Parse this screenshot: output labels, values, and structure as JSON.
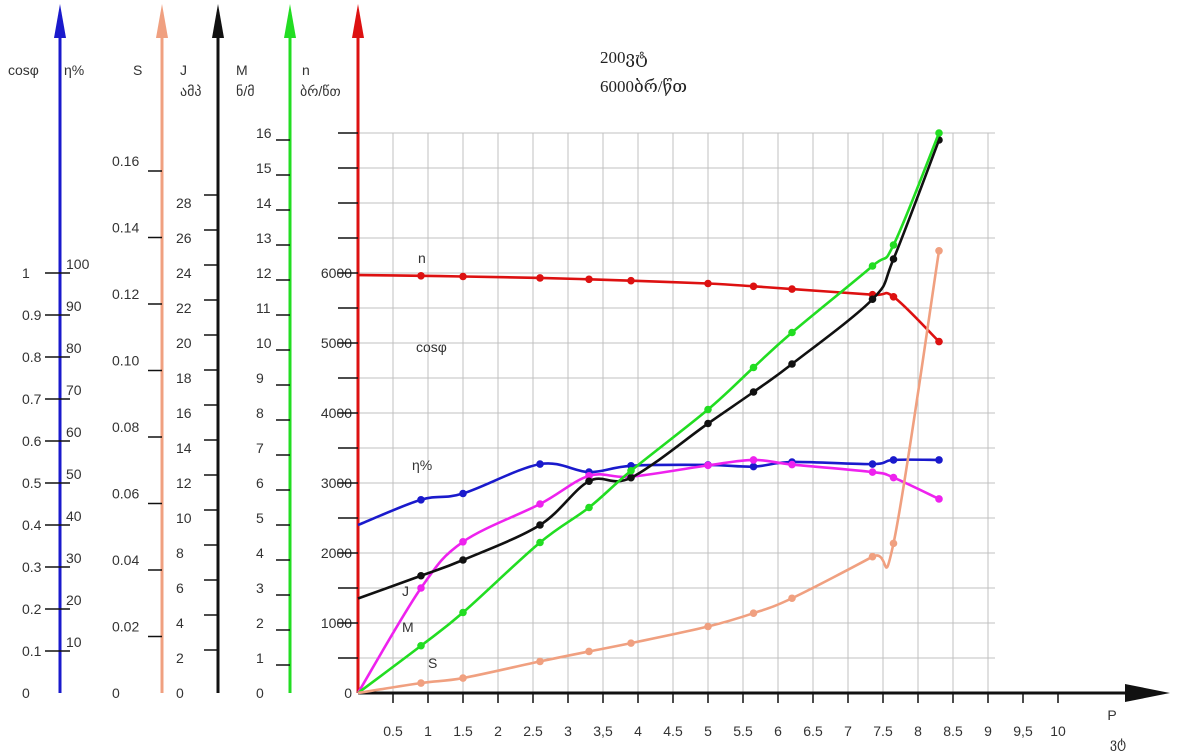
{
  "chart_data": {
    "type": "line",
    "annotations": [
      "200ვტ",
      "6000ბრ/წთ"
    ],
    "colors": {
      "cos_eta": "#1a1acc",
      "S": "#f0a080",
      "J": "#111111",
      "M": "#22dd22",
      "n": "#dd1111",
      "eta": "#ee22ee",
      "grid": "#c0c0c0",
      "x_axis": "#111111"
    },
    "x_axis": {
      "name": "P",
      "unit": "ვტ",
      "range": [
        0,
        10.5
      ],
      "ticks": [
        0.5,
        1,
        1.5,
        2,
        2.5,
        3,
        3.5,
        4,
        4.5,
        5,
        5.5,
        6,
        6.5,
        7,
        7.5,
        8,
        8.5,
        9,
        9.5,
        10
      ],
      "tick_labels": [
        "0.5",
        "1",
        "1.5",
        "2",
        "2.5",
        "3",
        "3,5",
        "4",
        "4.5",
        "5",
        "5.5",
        "6",
        "6.5",
        "7",
        "7.5",
        "8",
        "8.5",
        "9",
        "9,5",
        "10"
      ]
    },
    "y_axes": [
      {
        "key": "cos_eta",
        "names": [
          "cosφ",
          "η%"
        ],
        "unit": "",
        "labels_left": [
          "0",
          "0.1",
          "0.2",
          "0.3",
          "0.4",
          "0.5",
          "0.6",
          "0.7",
          "0.8",
          "0.9",
          "1"
        ],
        "labels_right": [
          "10",
          "20",
          "30",
          "40",
          "50",
          "60",
          "70",
          "80",
          "90",
          "100"
        ]
      },
      {
        "key": "S",
        "names": [
          "S"
        ],
        "unit": "",
        "labels": [
          "0",
          "0.02",
          "0.04",
          "0.06",
          "0.08",
          "0.10",
          "0.12",
          "0.14",
          "0.16"
        ]
      },
      {
        "key": "J",
        "names": [
          "J"
        ],
        "unit": "ამპ",
        "labels": [
          "0",
          "2",
          "4",
          "6",
          "8",
          "10",
          "12",
          "14",
          "16",
          "18",
          "20",
          "22",
          "24",
          "26",
          "28"
        ]
      },
      {
        "key": "M",
        "names": [
          "M"
        ],
        "unit": "ნ/მ",
        "labels": [
          "0",
          "1",
          "2",
          "3",
          "4",
          "5",
          "6",
          "7",
          "8",
          "9",
          "10",
          "11",
          "12",
          "13",
          "14",
          "15",
          "16"
        ]
      },
      {
        "key": "n",
        "names": [
          "n"
        ],
        "unit": "ბრ/წთ",
        "labels": [
          "0",
          "1000",
          "2000",
          "3000",
          "4000",
          "5000",
          "6000"
        ]
      }
    ],
    "series": [
      {
        "name": "n",
        "axis": "n",
        "x": [
          0,
          0.9,
          1.5,
          2.6,
          3.3,
          3.9,
          5,
          5.65,
          6.2,
          7.35,
          7.65,
          8.3
        ],
        "y": [
          5970,
          5960,
          5950,
          5930,
          5910,
          5890,
          5850,
          5810,
          5770,
          5690,
          5660,
          5020
        ]
      },
      {
        "name": "cosφ",
        "axis": "cos_eta",
        "x": [
          0,
          0.9,
          1.5,
          2.6,
          3.3,
          3.9,
          5,
          5.65,
          6.2,
          7.35,
          7.65,
          8.3
        ],
        "y": [
          0.4,
          0.46,
          0.475,
          0.545,
          0.526,
          0.541,
          0.543,
          0.539,
          0.55,
          0.545,
          0.555,
          0.555
        ]
      },
      {
        "name": "η%",
        "axis": "cos_eta",
        "x": [
          0,
          0.9,
          1.5,
          2.6,
          3.3,
          3.9,
          5,
          5.65,
          6.2,
          7.35,
          7.65,
          8.3
        ],
        "y": [
          0,
          25,
          36,
          45,
          51.7,
          51.5,
          54.2,
          55.5,
          54.4,
          52.6,
          51.3,
          46.2
        ]
      },
      {
        "name": "J",
        "axis": "J",
        "x": [
          0,
          0.9,
          1.5,
          2.6,
          3.3,
          3.9,
          5,
          5.65,
          6.2,
          7.35,
          7.65,
          8.3
        ],
        "y": [
          5.4,
          6.7,
          7.6,
          9.6,
          12.1,
          12.3,
          15.4,
          17.2,
          18.8,
          22.5,
          24.8,
          31.6
        ]
      },
      {
        "name": "M",
        "axis": "M",
        "x": [
          0,
          0.9,
          1.5,
          2.6,
          3.3,
          3.9,
          5,
          5.65,
          6.2,
          7.35,
          7.65,
          8.3
        ],
        "y": [
          0,
          1.35,
          2.3,
          4.3,
          5.3,
          6.35,
          8.1,
          9.3,
          10.3,
          12.2,
          12.8,
          16.0
        ]
      },
      {
        "name": "S",
        "axis": "S",
        "x": [
          0,
          0.9,
          1.5,
          2.6,
          3.3,
          3.9,
          5,
          5.65,
          6.2,
          7.35,
          7.65,
          8.3
        ],
        "y": [
          0,
          0.003,
          0.0045,
          0.0095,
          0.0125,
          0.015,
          0.02,
          0.024,
          0.0285,
          0.041,
          0.045,
          0.133
        ]
      }
    ],
    "grid": true
  }
}
